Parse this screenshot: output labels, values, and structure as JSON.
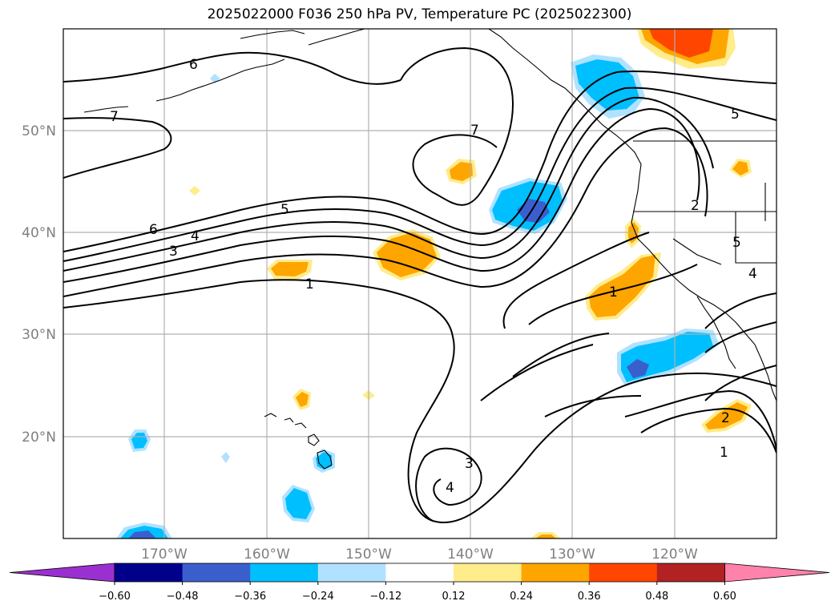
{
  "title": "2025022000 F036 250 hPa PV, Temperature PC (2025022300)",
  "lat_labels": [
    "50°N",
    "40°N",
    "30°N",
    "20°N"
  ],
  "lon_labels": [
    "170°W",
    "160°W",
    "150°W",
    "140°W",
    "130°W",
    "120°W"
  ],
  "colorbar": {
    "ticks": [
      "−0.60",
      "−0.48",
      "−0.36",
      "−0.24",
      "−0.12",
      "0.12",
      "0.24",
      "0.36",
      "0.48",
      "0.60"
    ],
    "colors": [
      "#9b30d0",
      "#00008b",
      "#3a5fcd",
      "#00bfff",
      "#b0e2ff",
      "#ffffff",
      "#ffec8b",
      "#ffa500",
      "#ff4500",
      "#b22222",
      "#ff82ab"
    ]
  },
  "contour_labels": [
    "6",
    "7",
    "7",
    "5",
    "6",
    "4",
    "3",
    "1",
    "1",
    "5",
    "2",
    "5",
    "4",
    "3",
    "4",
    "2",
    "1"
  ]
}
